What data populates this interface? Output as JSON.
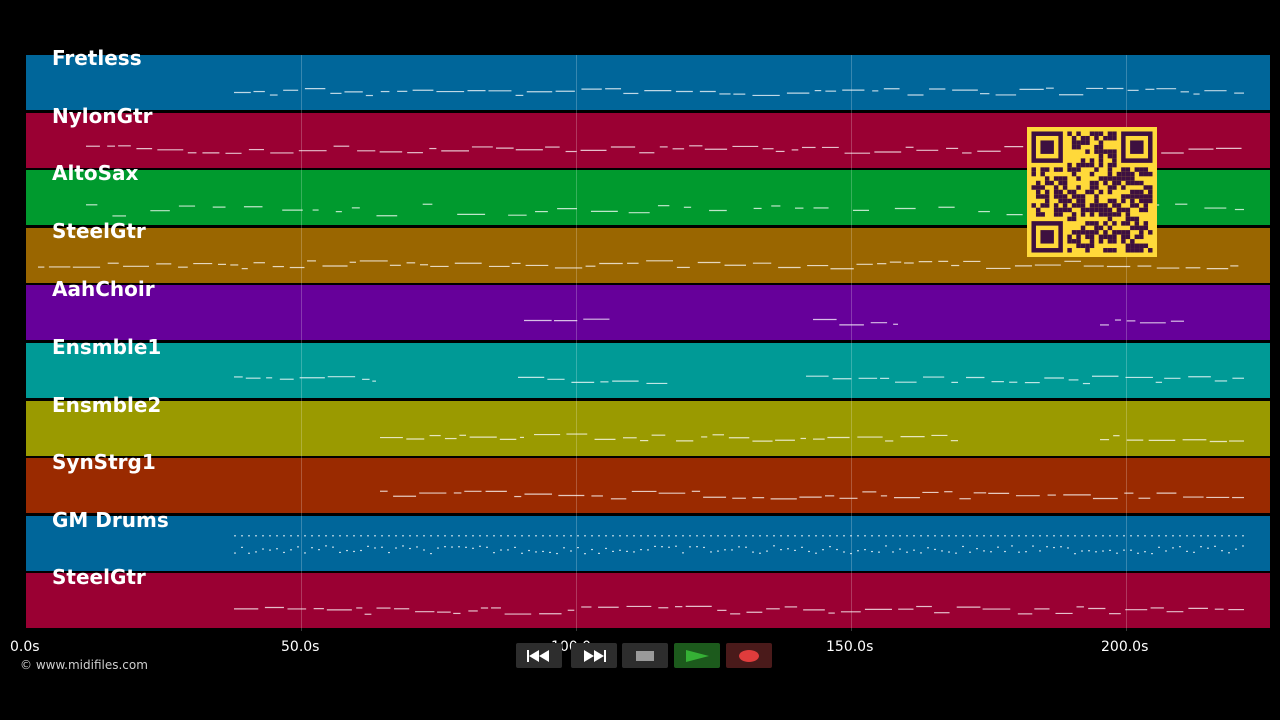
{
  "tracks": [
    {
      "name": "Fretless",
      "color": "#00669a"
    },
    {
      "name": "NylonGtr",
      "color": "#9a0033"
    },
    {
      "name": "AltoSax",
      "color": "#009a2e"
    },
    {
      "name": "SteelGtr",
      "color": "#9a6600"
    },
    {
      "name": "AahChoir",
      "color": "#66009a"
    },
    {
      "name": "Ensmble1",
      "color": "#009a96"
    },
    {
      "name": "Ensmble2",
      "color": "#9a9a00"
    },
    {
      "name": "SynStrg1",
      "color": "#9a2a00"
    },
    {
      "name": "GM Drums",
      "color": "#00669a"
    },
    {
      "name": "SteelGtr",
      "color": "#9a0033"
    }
  ],
  "timeline": {
    "ticks": [
      "0.0s",
      "50.0s",
      "100.0s",
      "150.0s",
      "200.0s"
    ],
    "tick_values": [
      0,
      50,
      100,
      150,
      200
    ]
  },
  "footer": {
    "copyright": "© www.midifiles.com"
  },
  "transport": {
    "buttons": [
      "rewind",
      "fast-forward",
      "stop",
      "play",
      "record"
    ],
    "icons": [
      "rewind-icon",
      "fast-forward-icon",
      "stop-icon",
      "play-icon",
      "record-icon"
    ],
    "play_color": "#35b035",
    "record_color": "#e03c3c"
  }
}
